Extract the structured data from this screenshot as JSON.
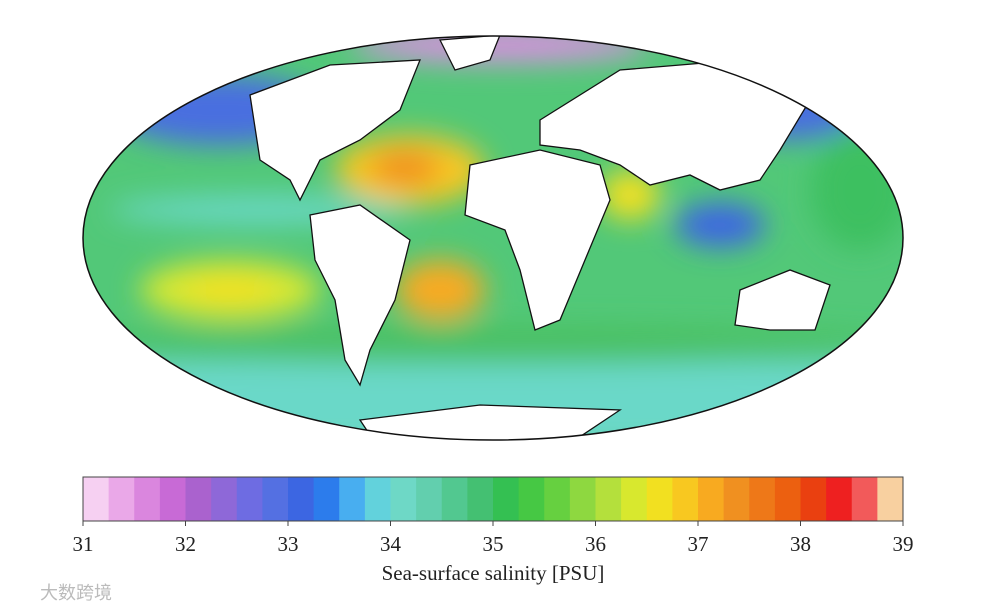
{
  "map": {
    "colorbar": {
      "lim": [
        31,
        39
      ],
      "ticks": [
        31,
        32,
        33,
        34,
        35,
        36,
        37,
        38,
        39
      ],
      "label": "Sea-surface salinity [PSU]",
      "colors": [
        "#f6d0f2",
        "#eaa8e8",
        "#da86de",
        "#c86ad6",
        "#aa62ce",
        "#8e68d8",
        "#6e6ce2",
        "#5470e2",
        "#3c66e2",
        "#2c7cec",
        "#48aef0",
        "#62d2dc",
        "#6ed8c6",
        "#62cfae",
        "#52c890",
        "#44c072",
        "#34c052",
        "#46c844",
        "#66d040",
        "#8ed840",
        "#b4e03c",
        "#d8e82e",
        "#f2e020",
        "#f8c820",
        "#f8aa20",
        "#f09020",
        "#ee7818",
        "#ec6010",
        "#ea4010",
        "#ee2020",
        "#f25a5a",
        "#f8d0a0"
      ]
    },
    "watermark": "大数跨境"
  }
}
